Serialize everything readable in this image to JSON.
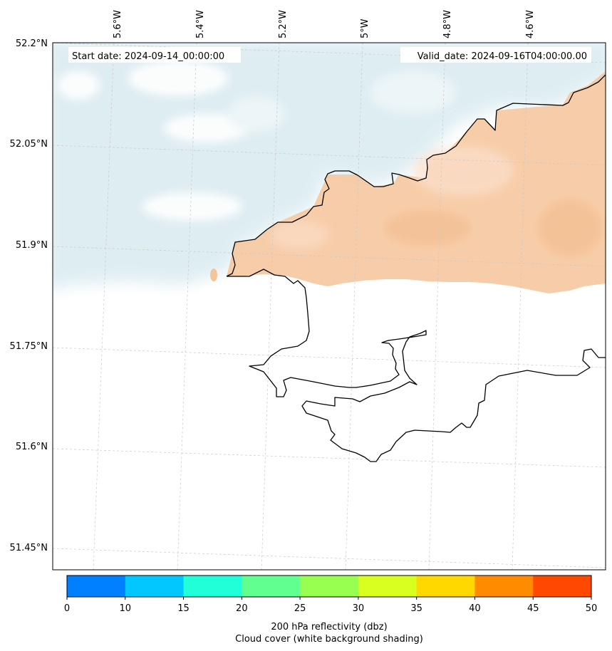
{
  "map": {
    "start_date": "Start date: 2024-09-14_00:00:00",
    "valid_date": "Valid_date: 2024-09-16T04:00:00.00",
    "lon_labels": [
      "5.6°W",
      "5.4°W",
      "5.2°W",
      "5°W",
      "4.8°W",
      "4.6°W"
    ],
    "lat_labels": [
      "52.2°N",
      "52.05°N",
      "51.9°N",
      "51.75°N",
      "51.6°N",
      "51.45°N"
    ],
    "cloud_color": "#d4e8ee",
    "reflectivity_fill_color": "#f6c49a",
    "coastline_color": "#000000"
  },
  "colorbar": {
    "ticks": [
      "0",
      "10",
      "15",
      "20",
      "25",
      "30",
      "35",
      "40",
      "45",
      "50"
    ],
    "colors": [
      "#0080ff",
      "#00c8ff",
      "#20ffd8",
      "#60ff90",
      "#98ff50",
      "#d8ff20",
      "#ffd800",
      "#ff8c00",
      "#ff4800"
    ],
    "label_line1": "200 hPa reflectivity (dbz)",
    "label_line2": "Cloud cover (white background shading)"
  }
}
